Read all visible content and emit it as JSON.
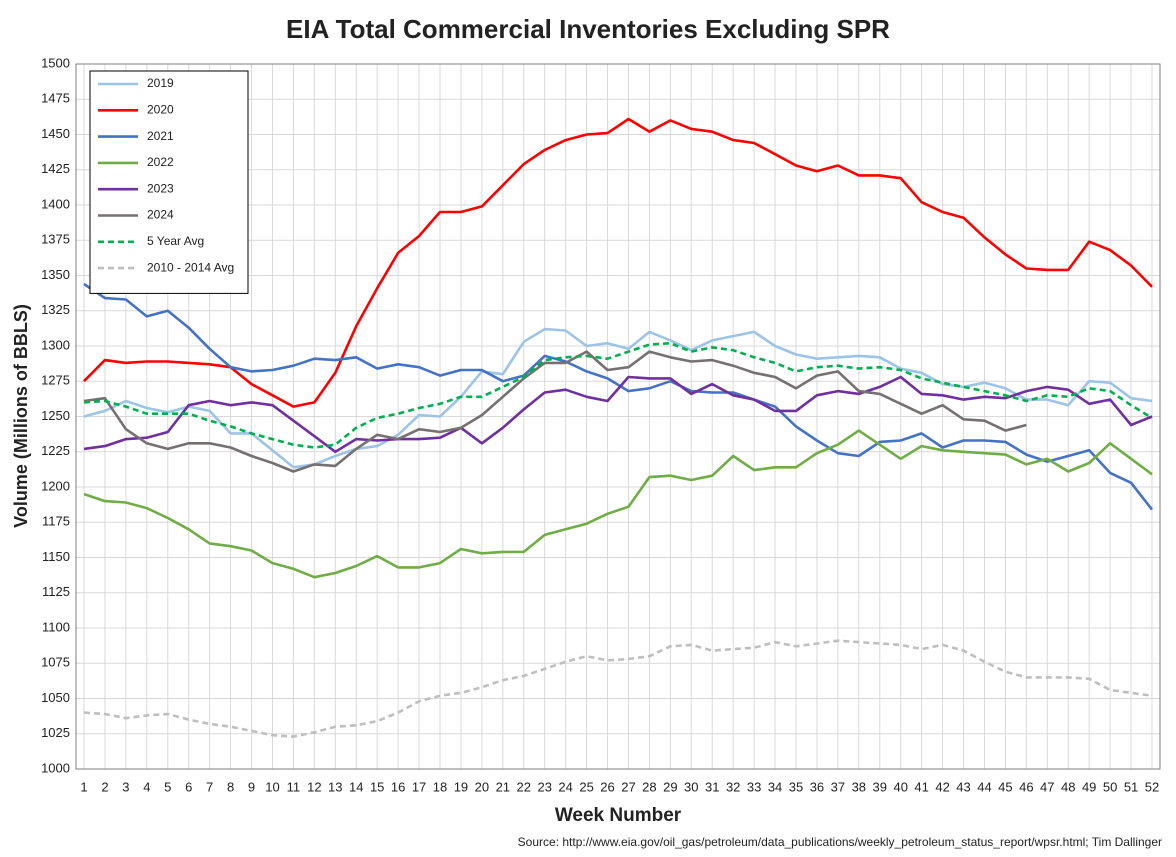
{
  "chart_data": {
    "type": "line",
    "title": "EIA Total Commercial Inventories Excluding SPR",
    "xlabel": "Week Number",
    "ylabel": "Volume (Millions of BBLS)",
    "source": "Source: http://www.eia.gov/oil_gas/petroleum/data_publications/weekly_petroleum_status_report/wpsr.html; Tim Dallinger",
    "x": [
      1,
      2,
      3,
      4,
      5,
      6,
      7,
      8,
      9,
      10,
      11,
      12,
      13,
      14,
      15,
      16,
      17,
      18,
      19,
      20,
      21,
      22,
      23,
      24,
      25,
      26,
      27,
      28,
      29,
      30,
      31,
      32,
      33,
      34,
      35,
      36,
      37,
      38,
      39,
      40,
      41,
      42,
      43,
      44,
      45,
      46,
      47,
      48,
      49,
      50,
      51,
      52
    ],
    "xlim": [
      1,
      52
    ],
    "xticks": [
      1,
      2,
      3,
      4,
      5,
      6,
      7,
      8,
      9,
      10,
      11,
      12,
      13,
      14,
      15,
      16,
      17,
      18,
      19,
      20,
      21,
      22,
      23,
      24,
      25,
      26,
      27,
      28,
      29,
      30,
      31,
      32,
      33,
      34,
      35,
      36,
      37,
      38,
      39,
      40,
      41,
      42,
      43,
      44,
      45,
      46,
      47,
      48,
      49,
      50,
      51,
      52
    ],
    "ylim": [
      1000,
      1500
    ],
    "yticks": [
      1000,
      1025,
      1050,
      1075,
      1100,
      1125,
      1150,
      1175,
      1200,
      1225,
      1250,
      1275,
      1300,
      1325,
      1350,
      1375,
      1400,
      1425,
      1450,
      1475,
      1500
    ],
    "grid": true,
    "legend": "upper left",
    "series": [
      {
        "name": "2019",
        "color": "#9dc3e6",
        "dashed": false,
        "values": [
          1250,
          1254,
          1261,
          1256,
          1253,
          1257,
          1254,
          1238,
          1238,
          1226,
          1214,
          1216,
          1222,
          1227,
          1229,
          1237,
          1251,
          1250,
          1264,
          1282,
          1280,
          1303,
          1312,
          1311,
          1300,
          1302,
          1298,
          1310,
          1304,
          1297,
          1304,
          1307,
          1310,
          1300,
          1294,
          1291,
          1292,
          1293,
          1292,
          1284,
          1281,
          1273,
          1271,
          1274,
          1270,
          1262,
          1262,
          1258,
          1275,
          1274,
          1263,
          1261
        ]
      },
      {
        "name": "2020",
        "color": "#ff0000",
        "dashed": false,
        "values": [
          1275,
          1290,
          1288,
          1289,
          1289,
          1288,
          1287,
          1285,
          1273,
          1265,
          1257,
          1260,
          1281,
          1314,
          1341,
          1366,
          1378,
          1395,
          1395,
          1399,
          1414,
          1429,
          1439,
          1446,
          1450,
          1451,
          1461,
          1452,
          1460,
          1454,
          1452,
          1446,
          1444,
          1436,
          1428,
          1424,
          1428,
          1421,
          1421,
          1419,
          1402,
          1395,
          1391,
          1377,
          1365,
          1355,
          1354,
          1354,
          1374,
          1368,
          1357,
          1342
        ]
      },
      {
        "name": "2021",
        "color": "#4472c4",
        "dashed": false,
        "values": [
          1344,
          1334,
          1333,
          1321,
          1325,
          1313,
          1298,
          1285,
          1282,
          1283,
          1286,
          1291,
          1290,
          1292,
          1284,
          1287,
          1285,
          1279,
          1283,
          1283,
          1275,
          1279,
          1293,
          1289,
          1282,
          1277,
          1268,
          1270,
          1275,
          1268,
          1267,
          1267,
          1262,
          1257,
          1243,
          1233,
          1224,
          1222,
          1232,
          1233,
          1238,
          1228,
          1233,
          1233,
          1232,
          1223,
          1218,
          1222,
          1226,
          1210,
          1203,
          1184
        ]
      },
      {
        "name": "2022",
        "color": "#70ad47",
        "dashed": false,
        "values": [
          1195,
          1190,
          1189,
          1185,
          1178,
          1170,
          1160,
          1158,
          1155,
          1146,
          1142,
          1136,
          1139,
          1144,
          1151,
          1143,
          1143,
          1146,
          1156,
          1153,
          1154,
          1154,
          1166,
          1170,
          1174,
          1181,
          1186,
          1207,
          1208,
          1205,
          1208,
          1222,
          1212,
          1214,
          1214,
          1224,
          1230,
          1240,
          1230,
          1220,
          1229,
          1226,
          1225,
          1224,
          1223,
          1216,
          1220,
          1211,
          1217,
          1231,
          1220,
          1209
        ]
      },
      {
        "name": "2023",
        "color": "#7030a0",
        "dashed": false,
        "values": [
          1227,
          1229,
          1234,
          1235,
          1239,
          1258,
          1261,
          1258,
          1260,
          1258,
          1247,
          1236,
          1225,
          1234,
          1233,
          1234,
          1234,
          1235,
          1242,
          1231,
          1242,
          1255,
          1267,
          1269,
          1264,
          1261,
          1278,
          1277,
          1277,
          1266,
          1273,
          1265,
          1262,
          1254,
          1254,
          1265,
          1268,
          1266,
          1271,
          1278,
          1266,
          1265,
          1262,
          1264,
          1263,
          1268,
          1271,
          1269,
          1259,
          1262,
          1244,
          1250
        ]
      },
      {
        "name": "2024",
        "color": "#767171",
        "dashed": false,
        "values": [
          1261,
          1263,
          1241,
          1231,
          1227,
          1231,
          1231,
          1228,
          1222,
          1217,
          1211,
          1216,
          1215,
          1227,
          1237,
          1234,
          1241,
          1239,
          1242,
          1251,
          1264,
          1277,
          1288,
          1288,
          1296,
          1283,
          1285,
          1296,
          1292,
          1289,
          1290,
          1286,
          1281,
          1278,
          1270,
          1279,
          1282,
          1268,
          1266,
          1259,
          1252,
          1258,
          1248,
          1247,
          1240,
          1244,
          null,
          null,
          null,
          null,
          null,
          null
        ]
      },
      {
        "name": "5 Year Avg",
        "color": "#00b050",
        "dashed": true,
        "values": [
          1260,
          1261,
          1257,
          1252,
          1252,
          1252,
          1247,
          1243,
          1238,
          1234,
          1230,
          1228,
          1230,
          1242,
          1249,
          1252,
          1256,
          1259,
          1264,
          1264,
          1271,
          1278,
          1290,
          1292,
          1293,
          1291,
          1296,
          1301,
          1302,
          1296,
          1299,
          1297,
          1292,
          1288,
          1282,
          1285,
          1286,
          1284,
          1285,
          1283,
          1277,
          1274,
          1271,
          1268,
          1265,
          1261,
          1265,
          1264,
          1270,
          1268,
          1258,
          1249
        ]
      },
      {
        "name": "2010 - 2014 Avg",
        "color": "#bfbfbf",
        "dashed": true,
        "values": [
          1040,
          1039,
          1036,
          1038,
          1039,
          1035,
          1032,
          1030,
          1027,
          1024,
          1023,
          1026,
          1030,
          1031,
          1034,
          1040,
          1048,
          1052,
          1054,
          1058,
          1063,
          1066,
          1071,
          1076,
          1080,
          1077,
          1078,
          1080,
          1087,
          1088,
          1084,
          1085,
          1086,
          1090,
          1087,
          1089,
          1091,
          1090,
          1089,
          1088,
          1085,
          1088,
          1084,
          1076,
          1069,
          1065,
          1065,
          1065,
          1064,
          1056,
          1054,
          1052
        ]
      }
    ]
  }
}
